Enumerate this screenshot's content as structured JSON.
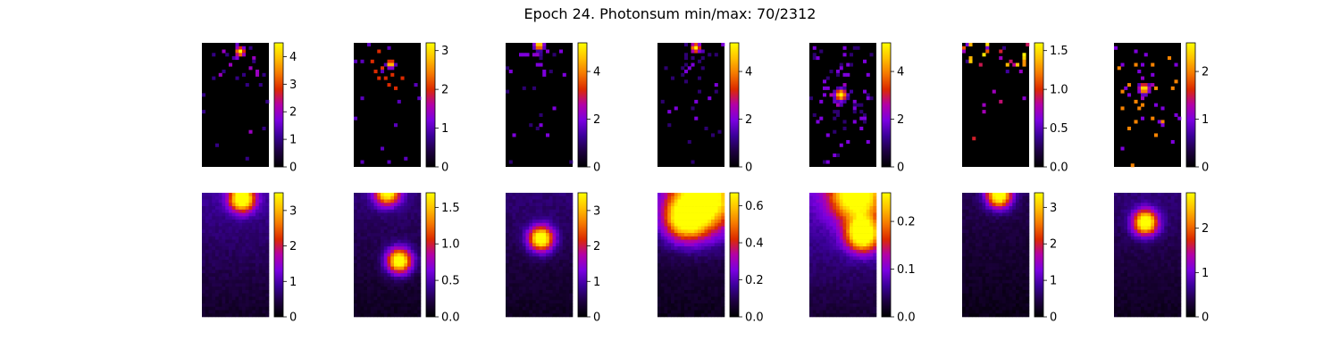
{
  "title": "Epoch 24. Photonsum min/max: 70/2312",
  "colormap": {
    "name": "gnuplot",
    "stops": [
      "#000000",
      "#1d0040",
      "#3b0099",
      "#7a00e0",
      "#b300a8",
      "#dc2a00",
      "#f57800",
      "#ffc000",
      "#ffff00"
    ]
  },
  "chart_data": [
    {
      "type": "heatmap",
      "row": "top",
      "col": 1,
      "kind": "sparse",
      "vmin": 0,
      "vmax": 4.5,
      "ticks": [
        "0",
        "1",
        "2",
        "3",
        "4"
      ],
      "tick_values": [
        0,
        1,
        2,
        3,
        4
      ],
      "blobs": [
        {
          "x": 0.57,
          "y": 0.07,
          "peak": 4.5,
          "sigma": 0.04
        }
      ],
      "scatter_extent": 0.55,
      "density": 0.35
    },
    {
      "type": "heatmap",
      "row": "top",
      "col": 2,
      "kind": "sparse",
      "vmin": 0,
      "vmax": 3.2,
      "ticks": [
        "0",
        "1",
        "2",
        "3"
      ],
      "tick_values": [
        0,
        1,
        2,
        3
      ],
      "blobs": [
        {
          "x": 0.55,
          "y": 0.17,
          "peak": 3.2,
          "sigma": 0.035
        }
      ],
      "scatter_extent": 0.35,
      "density": 0.3
    },
    {
      "type": "heatmap",
      "row": "top",
      "col": 3,
      "kind": "sparse",
      "vmin": 0,
      "vmax": 5.2,
      "ticks": [
        "0",
        "2",
        "4"
      ],
      "tick_values": [
        0,
        2,
        4
      ],
      "blobs": [
        {
          "x": 0.5,
          "y": 0.02,
          "peak": 5.2,
          "sigma": 0.04
        }
      ],
      "scatter_extent": 0.6,
      "density": 0.35
    },
    {
      "type": "heatmap",
      "row": "top",
      "col": 4,
      "kind": "sparse",
      "vmin": 0,
      "vmax": 5.2,
      "ticks": [
        "0",
        "2",
        "4"
      ],
      "tick_values": [
        0,
        2,
        4
      ],
      "blobs": [
        {
          "x": 0.57,
          "y": 0.04,
          "peak": 5.2,
          "sigma": 0.04
        }
      ],
      "scatter_extent": 0.55,
      "density": 0.35
    },
    {
      "type": "heatmap",
      "row": "top",
      "col": 5,
      "kind": "sparse",
      "vmin": 0,
      "vmax": 5.2,
      "ticks": [
        "0",
        "2",
        "4"
      ],
      "tick_values": [
        0,
        2,
        4
      ],
      "blobs": [
        {
          "x": 0.47,
          "y": 0.42,
          "peak": 5.2,
          "sigma": 0.05
        }
      ],
      "scatter_extent": 0.7,
      "density": 0.4
    },
    {
      "type": "heatmap",
      "row": "top",
      "col": 6,
      "kind": "sparse-edge",
      "vmin": 0,
      "vmax": 1.6,
      "ticks": [
        "0.0",
        "0.5",
        "1.0",
        "1.5"
      ],
      "tick_values": [
        0,
        0.5,
        1.0,
        1.5
      ],
      "blobs": [],
      "scatter_extent": 0.3,
      "density": 0.3
    },
    {
      "type": "heatmap",
      "row": "top",
      "col": 7,
      "kind": "sparse",
      "vmin": 0,
      "vmax": 2.6,
      "ticks": [
        "0",
        "1",
        "2"
      ],
      "tick_values": [
        0,
        1,
        2
      ],
      "blobs": [
        {
          "x": 0.45,
          "y": 0.37,
          "peak": 2.6,
          "sigma": 0.045
        }
      ],
      "scatter_extent": 0.5,
      "density": 0.3
    },
    {
      "type": "heatmap",
      "row": "bottom",
      "col": 1,
      "kind": "smooth",
      "vmin": 0,
      "vmax": 3.5,
      "ticks": [
        "0",
        "1",
        "2",
        "3"
      ],
      "tick_values": [
        0,
        1,
        2,
        3
      ],
      "blobs": [
        {
          "x": 0.6,
          "y": 0.05,
          "peak": 3.5,
          "sigma": 0.06
        }
      ],
      "background": 0.25
    },
    {
      "type": "heatmap",
      "row": "bottom",
      "col": 2,
      "kind": "smooth",
      "vmin": 0,
      "vmax": 1.7,
      "ticks": [
        "0.0",
        "0.5",
        "1.0",
        "1.5"
      ],
      "tick_values": [
        0,
        0.5,
        1.0,
        1.5
      ],
      "blobs": [
        {
          "x": 0.68,
          "y": 0.55,
          "peak": 1.7,
          "sigma": 0.06
        },
        {
          "x": 0.5,
          "y": 0.0,
          "peak": 1.5,
          "sigma": 0.06
        }
      ],
      "background": 0.2
    },
    {
      "type": "heatmap",
      "row": "bottom",
      "col": 3,
      "kind": "smooth",
      "vmin": 0,
      "vmax": 3.5,
      "ticks": [
        "0",
        "1",
        "2",
        "3"
      ],
      "tick_values": [
        0,
        1,
        2,
        3
      ],
      "blobs": [
        {
          "x": 0.53,
          "y": 0.37,
          "peak": 3.5,
          "sigma": 0.06
        }
      ],
      "background": 0.2
    },
    {
      "type": "heatmap",
      "row": "bottom",
      "col": 4,
      "kind": "smooth",
      "vmin": 0,
      "vmax": 0.67,
      "ticks": [
        "0.0",
        "0.2",
        "0.4",
        "0.6"
      ],
      "tick_values": [
        0,
        0.2,
        0.4,
        0.6
      ],
      "blobs": [
        {
          "x": 0.7,
          "y": 0.05,
          "peak": 0.67,
          "sigma": 0.16
        },
        {
          "x": 0.4,
          "y": 0.22,
          "peak": 0.45,
          "sigma": 0.1
        }
      ],
      "background": 0.18
    },
    {
      "type": "heatmap",
      "row": "bottom",
      "col": 5,
      "kind": "smooth",
      "vmin": 0,
      "vmax": 0.26,
      "ticks": [
        "0.0",
        "0.1",
        "0.2"
      ],
      "tick_values": [
        0,
        0.1,
        0.2
      ],
      "blobs": [
        {
          "x": 0.7,
          "y": 0.02,
          "peak": 0.24,
          "sigma": 0.12
        },
        {
          "x": 0.8,
          "y": 0.34,
          "peak": 0.26,
          "sigma": 0.08
        }
      ],
      "background": 0.32
    },
    {
      "type": "heatmap",
      "row": "bottom",
      "col": 6,
      "kind": "smooth",
      "vmin": 0,
      "vmax": 3.4,
      "ticks": [
        "0",
        "1",
        "2",
        "3"
      ],
      "tick_values": [
        0,
        1,
        2,
        3
      ],
      "blobs": [
        {
          "x": 0.55,
          "y": 0.02,
          "peak": 3.4,
          "sigma": 0.06
        }
      ],
      "background": 0.15
    },
    {
      "type": "heatmap",
      "row": "bottom",
      "col": 7,
      "kind": "smooth",
      "vmin": 0,
      "vmax": 2.8,
      "ticks": [
        "0",
        "1",
        "2"
      ],
      "tick_values": [
        0,
        1,
        2
      ],
      "blobs": [
        {
          "x": 0.47,
          "y": 0.24,
          "peak": 2.8,
          "sigma": 0.06
        }
      ],
      "background": 0.2
    }
  ]
}
